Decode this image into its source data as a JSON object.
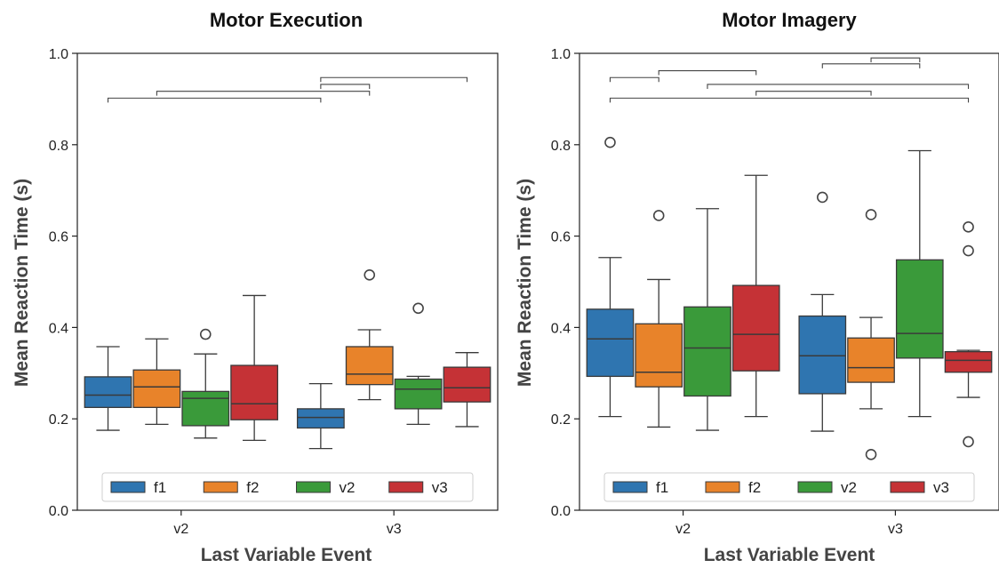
{
  "chart_data": [
    {
      "type": "box",
      "title": "Motor Execution",
      "xlabel": "Last Variable Event",
      "ylabel": "Mean Reaction Time (s)",
      "ylim": [
        0,
        1.0
      ],
      "yticks": [
        "0.0",
        "0.2",
        "0.4",
        "0.6",
        "0.8",
        "1.0"
      ],
      "categories": [
        "v2",
        "v3"
      ],
      "legend": {
        "placement": "bottom-center",
        "entries": [
          "f1",
          "f2",
          "v2",
          "v3"
        ]
      },
      "colors": {
        "f1": "#2f75b0",
        "f2": "#e8832a",
        "v2": "#3a9a3a",
        "v3": "#c53236"
      },
      "series": [
        {
          "name": "f1",
          "boxes": [
            {
              "category": "v2",
              "whisker_low": 0.175,
              "q1": 0.225,
              "median": 0.252,
              "q3": 0.292,
              "whisker_high": 0.358,
              "outliers": []
            },
            {
              "category": "v3",
              "whisker_low": 0.135,
              "q1": 0.18,
              "median": 0.203,
              "q3": 0.222,
              "whisker_high": 0.277,
              "outliers": []
            }
          ]
        },
        {
          "name": "f2",
          "boxes": [
            {
              "category": "v2",
              "whisker_low": 0.188,
              "q1": 0.225,
              "median": 0.27,
              "q3": 0.307,
              "whisker_high": 0.375,
              "outliers": []
            },
            {
              "category": "v3",
              "whisker_low": 0.242,
              "q1": 0.275,
              "median": 0.298,
              "q3": 0.358,
              "whisker_high": 0.395,
              "outliers": [
                0.515
              ]
            }
          ]
        },
        {
          "name": "v2",
          "boxes": [
            {
              "category": "v2",
              "whisker_low": 0.158,
              "q1": 0.185,
              "median": 0.245,
              "q3": 0.26,
              "whisker_high": 0.342,
              "outliers": [
                0.385
              ]
            },
            {
              "category": "v3",
              "whisker_low": 0.188,
              "q1": 0.222,
              "median": 0.265,
              "q3": 0.287,
              "whisker_high": 0.293,
              "outliers": [
                0.442
              ]
            }
          ]
        },
        {
          "name": "v3",
          "boxes": [
            {
              "category": "v2",
              "whisker_low": 0.153,
              "q1": 0.198,
              "median": 0.233,
              "q3": 0.317,
              "whisker_high": 0.47,
              "outliers": []
            },
            {
              "category": "v3",
              "whisker_low": 0.183,
              "q1": 0.237,
              "median": 0.268,
              "q3": 0.313,
              "whisker_high": 0.345,
              "outliers": []
            }
          ]
        }
      ],
      "significance_brackets": [
        {
          "from": [
            "v2",
            "f1"
          ],
          "to": [
            "v3",
            "f1"
          ],
          "y": 0.902
        },
        {
          "from": [
            "v2",
            "f2"
          ],
          "to": [
            "v3",
            "f2"
          ],
          "y": 0.917
        },
        {
          "from": [
            "v3",
            "f1"
          ],
          "to": [
            "v3",
            "f2"
          ],
          "y": 0.932
        },
        {
          "from": [
            "v3",
            "f1"
          ],
          "to": [
            "v3",
            "v3"
          ],
          "y": 0.947
        }
      ]
    },
    {
      "type": "box",
      "title": "Motor Imagery",
      "xlabel": "Last Variable Event",
      "ylabel": "Mean Reaction Time (s)",
      "ylim": [
        0,
        1.0
      ],
      "yticks": [
        "0.0",
        "0.2",
        "0.4",
        "0.6",
        "0.8",
        "1.0"
      ],
      "categories": [
        "v2",
        "v3"
      ],
      "legend": {
        "placement": "bottom-center",
        "entries": [
          "f1",
          "f2",
          "v2",
          "v3"
        ]
      },
      "colors": {
        "f1": "#2f75b0",
        "f2": "#e8832a",
        "v2": "#3a9a3a",
        "v3": "#c53236"
      },
      "series": [
        {
          "name": "f1",
          "boxes": [
            {
              "category": "v2",
              "whisker_low": 0.205,
              "q1": 0.293,
              "median": 0.375,
              "q3": 0.44,
              "whisker_high": 0.553,
              "outliers": [
                0.805
              ]
            },
            {
              "category": "v3",
              "whisker_low": 0.173,
              "q1": 0.255,
              "median": 0.338,
              "q3": 0.425,
              "whisker_high": 0.472,
              "outliers": [
                0.685
              ]
            }
          ]
        },
        {
          "name": "f2",
          "boxes": [
            {
              "category": "v2",
              "whisker_low": 0.182,
              "q1": 0.27,
              "median": 0.302,
              "q3": 0.408,
              "whisker_high": 0.505,
              "outliers": [
                0.645
              ]
            },
            {
              "category": "v3",
              "whisker_low": 0.222,
              "q1": 0.28,
              "median": 0.312,
              "q3": 0.377,
              "whisker_high": 0.422,
              "outliers": [
                0.647,
                0.122
              ]
            }
          ]
        },
        {
          "name": "v2",
          "boxes": [
            {
              "category": "v2",
              "whisker_low": 0.175,
              "q1": 0.25,
              "median": 0.355,
              "q3": 0.445,
              "whisker_high": 0.66,
              "outliers": []
            },
            {
              "category": "v3",
              "whisker_low": 0.205,
              "q1": 0.333,
              "median": 0.387,
              "q3": 0.548,
              "whisker_high": 0.787,
              "outliers": []
            }
          ]
        },
        {
          "name": "v3",
          "boxes": [
            {
              "category": "v2",
              "whisker_low": 0.205,
              "q1": 0.305,
              "median": 0.385,
              "q3": 0.492,
              "whisker_high": 0.733,
              "outliers": []
            },
            {
              "category": "v3",
              "whisker_low": 0.247,
              "q1": 0.302,
              "median": 0.328,
              "q3": 0.347,
              "whisker_high": 0.35,
              "outliers": [
                0.62,
                0.568,
                0.15
              ]
            }
          ]
        }
      ],
      "significance_brackets": [
        {
          "from": [
            "v2",
            "f1"
          ],
          "to": [
            "v3",
            "v3"
          ],
          "y": 0.902
        },
        {
          "from": [
            "v2",
            "v3"
          ],
          "to": [
            "v3",
            "f2"
          ],
          "y": 0.917
        },
        {
          "from": [
            "v2",
            "v2"
          ],
          "to": [
            "v3",
            "v3"
          ],
          "y": 0.932
        },
        {
          "from": [
            "v2",
            "f1"
          ],
          "to": [
            "v2",
            "f2"
          ],
          "y": 0.947
        },
        {
          "from": [
            "v2",
            "f2"
          ],
          "to": [
            "v2",
            "v3"
          ],
          "y": 0.962
        },
        {
          "from": [
            "v3",
            "f1"
          ],
          "to": [
            "v3",
            "v2"
          ],
          "y": 0.977
        },
        {
          "from": [
            "v3",
            "f2"
          ],
          "to": [
            "v3",
            "v2"
          ],
          "y": 0.99
        }
      ]
    }
  ]
}
